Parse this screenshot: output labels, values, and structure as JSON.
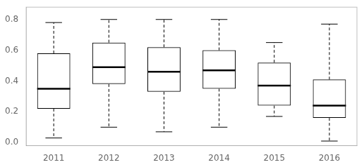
{
  "chart_data": {
    "type": "boxplot",
    "categories": [
      "2011",
      "2012",
      "2013",
      "2014",
      "2015",
      "2016"
    ],
    "boxes": [
      {
        "low": 0.03,
        "q1": 0.22,
        "median": 0.35,
        "q3": 0.58,
        "high": 0.78
      },
      {
        "low": 0.1,
        "q1": 0.38,
        "median": 0.49,
        "q3": 0.65,
        "high": 0.8
      },
      {
        "low": 0.07,
        "q1": 0.33,
        "median": 0.46,
        "q3": 0.62,
        "high": 0.8
      },
      {
        "low": 0.1,
        "q1": 0.35,
        "median": 0.47,
        "q3": 0.6,
        "high": 0.8
      },
      {
        "low": 0.17,
        "q1": 0.24,
        "median": 0.37,
        "q3": 0.52,
        "high": 0.65
      },
      {
        "low": 0.01,
        "q1": 0.16,
        "median": 0.24,
        "q3": 0.41,
        "high": 0.77
      }
    ],
    "ylim": [
      -0.02,
      0.88
    ],
    "yticks": [
      {
        "value": 0.0,
        "label": "0.0"
      },
      0.2,
      0.4,
      0.6,
      0.8
    ],
    "color": "black",
    "line_style": "dashed",
    "grid": false
  }
}
